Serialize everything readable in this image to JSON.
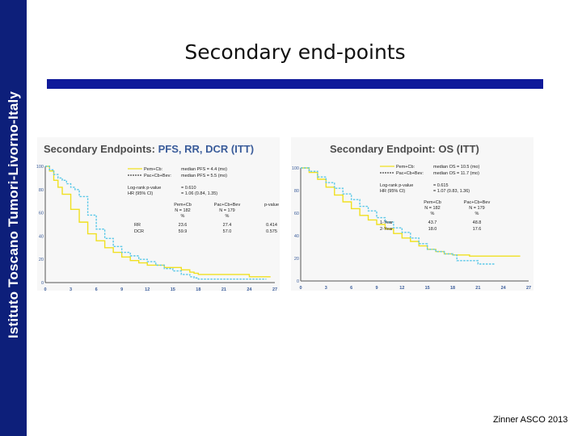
{
  "sidebar": {
    "text": "Istituto Toscano Tumori-Livorno-Italy"
  },
  "slide": {
    "title": "Secondary end-points",
    "citation": "Zinner ASCO 2013"
  },
  "colors": {
    "sidebar": "#0d1f7a",
    "bar": "#0f1a9a",
    "pem": "#f0e020",
    "pac": "#5bc8e8"
  },
  "chart_data": [
    {
      "type": "line",
      "title_prefix": "Secondary Endpoints:",
      "title_accent": "PFS, RR, DCR (ITT)",
      "ylim": [
        0,
        100
      ],
      "xlim": [
        0,
        27
      ],
      "x_ticks": [
        "0",
        "3",
        "6",
        "9",
        "12",
        "15",
        "18",
        "21",
        "24",
        "27"
      ],
      "y_ticks": [
        "100",
        "80",
        "60",
        "40",
        "20",
        "0"
      ],
      "legend": [
        {
          "name": "Pem+Cb:",
          "stat": "median PFS = 4.4 (mo)"
        },
        {
          "name": "Pac+Cb+Bev:",
          "stat": "median PFS = 5.5 (mo)"
        }
      ],
      "stats": [
        {
          "label": "Log-rank p-value",
          "value": "= 0.610"
        },
        {
          "label": "HR (95% CI)",
          "value": "= 1.06 (0.84, 1.35)"
        }
      ],
      "table": {
        "headers": [
          "",
          "Pem+Cb N = 182 %",
          "Pac+Cb+Bev N = 179 %",
          "p-value"
        ],
        "header_lines": [
          [
            "Pem+Cb",
            "N = 182",
            "%"
          ],
          [
            "Pac+Cb+Bev",
            "N = 179",
            "%"
          ],
          [
            "p-value"
          ]
        ],
        "rows": [
          {
            "label": "RR",
            "a": "23.6",
            "b": "27.4",
            "p": "0.414"
          },
          {
            "label": "DCR",
            "a": "59.9",
            "b": "57.0",
            "p": "0.575"
          }
        ]
      },
      "series": [
        {
          "name": "Pem+Cb",
          "x": [
            0,
            0.5,
            1,
            1.5,
            2,
            3,
            4,
            5,
            6,
            7,
            8,
            9,
            10,
            11,
            12,
            14,
            16,
            17,
            17.5,
            18,
            20,
            22,
            24,
            26.5
          ],
          "y": [
            100,
            96,
            88,
            82,
            76,
            63,
            52,
            42,
            36,
            30,
            26,
            22,
            19,
            17,
            15,
            13,
            11,
            9,
            8,
            7,
            7,
            7,
            5,
            5
          ]
        },
        {
          "name": "Pac+Cb+Bev",
          "x": [
            0,
            0.5,
            1,
            1.5,
            2,
            2.5,
            3,
            3.5,
            4,
            5,
            6,
            7,
            8,
            9,
            10,
            11,
            12,
            13,
            14,
            15,
            16,
            17,
            17.5,
            18,
            20,
            22,
            24,
            26
          ],
          "y": [
            100,
            97,
            93,
            90,
            88,
            85,
            82,
            80,
            74,
            58,
            46,
            38,
            31,
            26,
            23,
            20,
            18,
            15,
            12,
            10,
            7,
            5,
            4,
            3,
            3,
            3,
            3,
            3
          ]
        }
      ]
    },
    {
      "type": "line",
      "title_prefix": "Secondary Endpoint: OS (ITT)",
      "title_accent": "",
      "ylim": [
        0,
        100
      ],
      "xlim": [
        0,
        27
      ],
      "x_ticks": [
        "0",
        "3",
        "6",
        "9",
        "12",
        "15",
        "18",
        "21",
        "24",
        "27"
      ],
      "y_ticks": [
        "100",
        "80",
        "60",
        "40",
        "20",
        "0"
      ],
      "legend": [
        {
          "name": "Pem+Cb:",
          "stat": "median OS = 10.5 (mo)"
        },
        {
          "name": "Pac+Cb+Bev:",
          "stat": "median OS = 11.7 (mo)"
        }
      ],
      "stats": [
        {
          "label": "Log-rank p-value",
          "value": "= 0.615"
        },
        {
          "label": "HR (95% CI)",
          "value": "= 1.07 (0.83, 1.36)"
        }
      ],
      "table": {
        "headers": [
          "",
          "Pem+Cb N = 182 %",
          "Pac+Cb+Bev N = 179 %"
        ],
        "header_lines": [
          [
            "Pem+Cb",
            "N = 182",
            "%"
          ],
          [
            "Pac+Cb+Bev",
            "N = 179",
            "%"
          ]
        ],
        "rows": [
          {
            "label": "1-Year",
            "a": "43.7",
            "b": "48.8"
          },
          {
            "label": "2-Year",
            "a": "18.0",
            "b": "17.6"
          }
        ]
      },
      "series": [
        {
          "name": "Pem+Cb",
          "x": [
            0,
            1,
            2,
            3,
            4,
            5,
            6,
            7,
            8,
            9,
            10,
            11,
            12,
            13,
            14,
            15,
            16,
            17,
            18,
            20,
            22,
            24,
            26
          ],
          "y": [
            100,
            96,
            90,
            83,
            76,
            70,
            64,
            58,
            54,
            50,
            46,
            42,
            38,
            35,
            31,
            28,
            26,
            24,
            23,
            22,
            22,
            22,
            22
          ]
        },
        {
          "name": "Pac+Cb+Bev",
          "x": [
            0,
            1,
            2,
            3,
            4,
            5,
            6,
            7,
            8,
            9,
            10,
            11,
            12,
            13,
            14,
            15,
            16,
            17,
            18,
            18.5,
            19,
            20,
            21,
            22,
            23
          ],
          "y": [
            100,
            97,
            92,
            87,
            82,
            77,
            72,
            66,
            62,
            56,
            52,
            47,
            43,
            38,
            33,
            28,
            26,
            24,
            23,
            18,
            18,
            18,
            15,
            15,
            15
          ]
        }
      ]
    }
  ]
}
